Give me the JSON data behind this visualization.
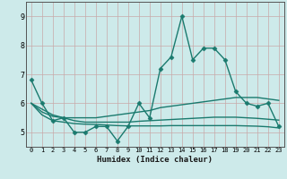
{
  "title": "",
  "xlabel": "Humidex (Indice chaleur)",
  "xlim": [
    -0.5,
    23.5
  ],
  "ylim": [
    4.5,
    9.5
  ],
  "yticks": [
    5,
    6,
    7,
    8,
    9
  ],
  "xticks": [
    0,
    1,
    2,
    3,
    4,
    5,
    6,
    7,
    8,
    9,
    10,
    11,
    12,
    13,
    14,
    15,
    16,
    17,
    18,
    19,
    20,
    21,
    22,
    23
  ],
  "bg_color": "#cdeaea",
  "grid_color": "#b8d8d8",
  "line_color": "#1a7a6e",
  "line_width": 1.0,
  "marker": "D",
  "marker_size": 2.5,
  "series": [
    [
      6.8,
      6.0,
      5.4,
      5.5,
      5.0,
      5.0,
      5.2,
      5.2,
      4.7,
      5.2,
      6.0,
      5.5,
      7.2,
      7.6,
      9.0,
      7.5,
      7.9,
      7.9,
      7.5,
      6.4,
      6.0,
      5.9,
      6.0,
      5.2
    ],
    [
      6.0,
      5.7,
      5.55,
      5.5,
      5.5,
      5.5,
      5.5,
      5.55,
      5.6,
      5.65,
      5.7,
      5.75,
      5.85,
      5.9,
      5.95,
      6.0,
      6.05,
      6.1,
      6.15,
      6.2,
      6.2,
      6.2,
      6.15,
      6.1
    ],
    [
      6.0,
      5.8,
      5.6,
      5.5,
      5.4,
      5.35,
      5.35,
      5.35,
      5.35,
      5.35,
      5.38,
      5.4,
      5.42,
      5.44,
      5.46,
      5.48,
      5.5,
      5.52,
      5.52,
      5.52,
      5.5,
      5.48,
      5.45,
      5.42
    ],
    [
      6.0,
      5.6,
      5.4,
      5.35,
      5.3,
      5.28,
      5.27,
      5.25,
      5.23,
      5.22,
      5.22,
      5.22,
      5.22,
      5.23,
      5.23,
      5.23,
      5.23,
      5.23,
      5.23,
      5.23,
      5.22,
      5.21,
      5.19,
      5.15
    ]
  ]
}
